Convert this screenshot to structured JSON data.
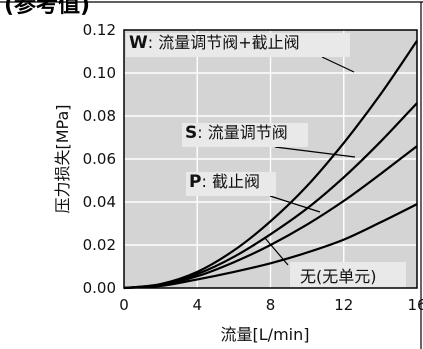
{
  "partial_title": "(参考值)",
  "chart_data": {
    "type": "line",
    "xlabel": "流量[L/min]",
    "ylabel": "压力损失[MPa]",
    "xlim": [
      0,
      16
    ],
    "ylim": [
      0,
      0.12
    ],
    "xticks": [
      "0",
      "4",
      "8",
      "12",
      "16"
    ],
    "yticks": [
      "0.00",
      "0.02",
      "0.04",
      "0.06",
      "0.08",
      "0.10",
      "0.12"
    ],
    "grid": true,
    "series": [
      {
        "name": "W: 流量调节阀+截止阀",
        "key": "W",
        "label_rest": ": 流量调节阀+截止阀",
        "x": [
          0,
          2,
          4,
          6,
          8,
          10,
          12,
          14,
          16
        ],
        "y": [
          0,
          0.0018,
          0.0075,
          0.0175,
          0.031,
          0.0475,
          0.0675,
          0.09,
          0.115
        ]
      },
      {
        "name": "S: 流量调节阀",
        "key": "S",
        "label_rest": ": 流量调节阀",
        "x": [
          0,
          2,
          4,
          6,
          8,
          10,
          12,
          14,
          16
        ],
        "y": [
          0,
          0.0016,
          0.0065,
          0.0145,
          0.025,
          0.037,
          0.0515,
          0.068,
          0.086
        ]
      },
      {
        "name": "P: 截止阀",
        "key": "P",
        "label_rest": ": 截止阀",
        "x": [
          0,
          2,
          4,
          6,
          8,
          10,
          12,
          14,
          16
        ],
        "y": [
          0,
          0.0014,
          0.0055,
          0.012,
          0.02,
          0.0295,
          0.0405,
          0.053,
          0.066
        ]
      },
      {
        "name": "无(无单元)",
        "key": "",
        "label_rest": "无(无单元)",
        "x": [
          0,
          2,
          4,
          6,
          8,
          10,
          12,
          14,
          16
        ],
        "y": [
          0,
          0.001,
          0.004,
          0.0075,
          0.0115,
          0.0165,
          0.0225,
          0.0305,
          0.039
        ]
      }
    ]
  }
}
